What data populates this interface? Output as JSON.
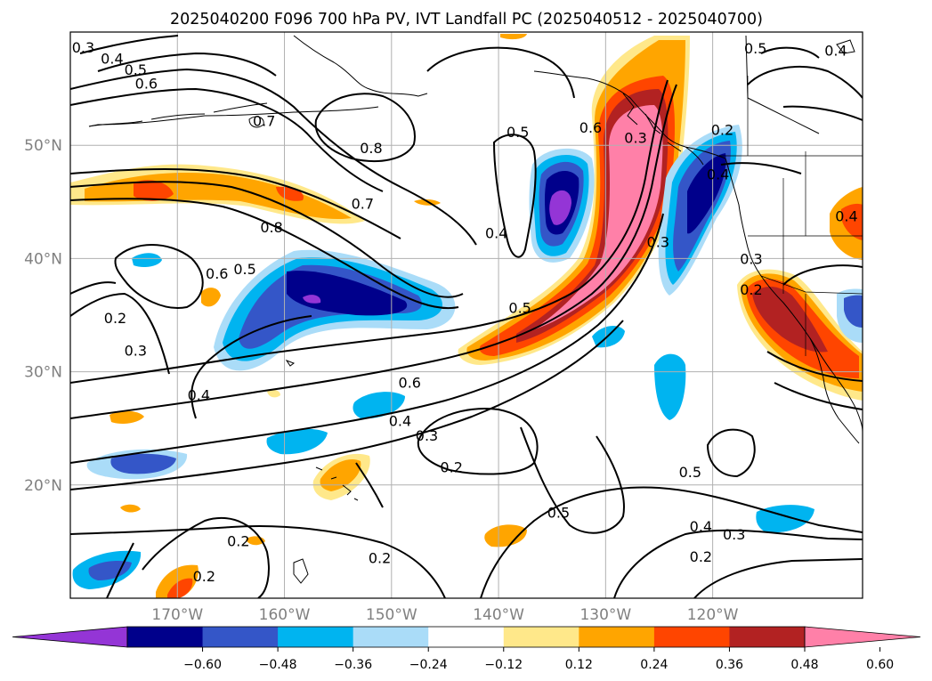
{
  "title": "2025040200 F096 700 hPa PV, IVT Landfall PC (2025040512 - 2025040700)",
  "colors": {
    "frame": "#000000",
    "grid": "#b0b0b0",
    "tick_label": "#808080",
    "coast": "#000000"
  },
  "map": {
    "lon_range": [
      -180,
      -106
    ],
    "lat_range": [
      10,
      60
    ],
    "lat_labels": [
      {
        "lat": 50,
        "text": "50°N"
      },
      {
        "lat": 40,
        "text": "40°N"
      },
      {
        "lat": 30,
        "text": "30°N"
      },
      {
        "lat": 20,
        "text": "20°N"
      }
    ],
    "lon_labels": [
      {
        "lon": -170,
        "text": "170°W"
      },
      {
        "lon": -160,
        "text": "160°W"
      },
      {
        "lon": -150,
        "text": "150°W"
      },
      {
        "lon": -140,
        "text": "140°W"
      },
      {
        "lon": -130,
        "text": "130°W"
      },
      {
        "lon": -120,
        "text": "120°W"
      }
    ]
  },
  "colorbar": {
    "colors": [
      "#9435d6",
      "#00008b",
      "#3456c8",
      "#00b4f0",
      "#aadcf8",
      "#ffffff",
      "#ffe88a",
      "#ffa500",
      "#ff4500",
      "#b22222",
      "#ff80a8"
    ],
    "tick_labels": [
      "−0.60",
      "−0.48",
      "−0.36",
      "−0.24",
      "−0.12",
      "0.12",
      "0.24",
      "0.36",
      "0.48",
      "0.60"
    ]
  },
  "contour_labels": [
    {
      "lon": -178.8,
      "lat": 58.6,
      "text": "0.3"
    },
    {
      "lon": -176.1,
      "lat": 57.6,
      "text": "0.4"
    },
    {
      "lon": -173.9,
      "lat": 56.6,
      "text": "0.5"
    },
    {
      "lon": -172.9,
      "lat": 55.4,
      "text": "0.6"
    },
    {
      "lon": -161.9,
      "lat": 52.1,
      "text": "0.7"
    },
    {
      "lon": -151.9,
      "lat": 49.7,
      "text": "0.8"
    },
    {
      "lon": -152.7,
      "lat": 44.8,
      "text": "0.7"
    },
    {
      "lon": -161.2,
      "lat": 42.7,
      "text": "0.8"
    },
    {
      "lon": -166.3,
      "lat": 38.6,
      "text": "0.6"
    },
    {
      "lon": -163.7,
      "lat": 39.0,
      "text": "0.5"
    },
    {
      "lon": -175.8,
      "lat": 34.7,
      "text": "0.2"
    },
    {
      "lon": -173.9,
      "lat": 31.8,
      "text": "0.3"
    },
    {
      "lon": -168.0,
      "lat": 27.9,
      "text": "0.4"
    },
    {
      "lon": -148.3,
      "lat": 29.0,
      "text": "0.6"
    },
    {
      "lon": -149.2,
      "lat": 25.6,
      "text": "0.4"
    },
    {
      "lon": -146.7,
      "lat": 24.3,
      "text": "0.3"
    },
    {
      "lon": -144.4,
      "lat": 21.5,
      "text": "0.2"
    },
    {
      "lon": -138.2,
      "lat": 51.1,
      "text": "0.5"
    },
    {
      "lon": -140.2,
      "lat": 42.2,
      "text": "0.4"
    },
    {
      "lon": -138.0,
      "lat": 35.6,
      "text": "0.5"
    },
    {
      "lon": -131.4,
      "lat": 51.5,
      "text": "0.6"
    },
    {
      "lon": -125.1,
      "lat": 41.4,
      "text": "0.3"
    },
    {
      "lon": -127.2,
      "lat": 50.6,
      "text": "0.3"
    },
    {
      "lon": -119.1,
      "lat": 51.3,
      "text": "0.2"
    },
    {
      "lon": -119.5,
      "lat": 47.4,
      "text": "0.4"
    },
    {
      "lon": -116.0,
      "lat": 58.5,
      "text": "0.5"
    },
    {
      "lon": -108.5,
      "lat": 58.3,
      "text": "0.4"
    },
    {
      "lon": -116.4,
      "lat": 37.2,
      "text": "0.2"
    },
    {
      "lon": -116.4,
      "lat": 39.9,
      "text": "0.3"
    },
    {
      "lon": -107.5,
      "lat": 43.7,
      "text": "0.4"
    },
    {
      "lon": -122.1,
      "lat": 21.1,
      "text": "0.5"
    },
    {
      "lon": -121.1,
      "lat": 16.3,
      "text": "0.4"
    },
    {
      "lon": -118.0,
      "lat": 15.6,
      "text": "0.3"
    },
    {
      "lon": -121.1,
      "lat": 13.6,
      "text": "0.2"
    },
    {
      "lon": -134.4,
      "lat": 17.5,
      "text": "0.5"
    },
    {
      "lon": -164.3,
      "lat": 15.0,
      "text": "0.2"
    },
    {
      "lon": -167.5,
      "lat": 11.9,
      "text": "0.2"
    },
    {
      "lon": -151.1,
      "lat": 13.5,
      "text": "0.2"
    }
  ]
}
